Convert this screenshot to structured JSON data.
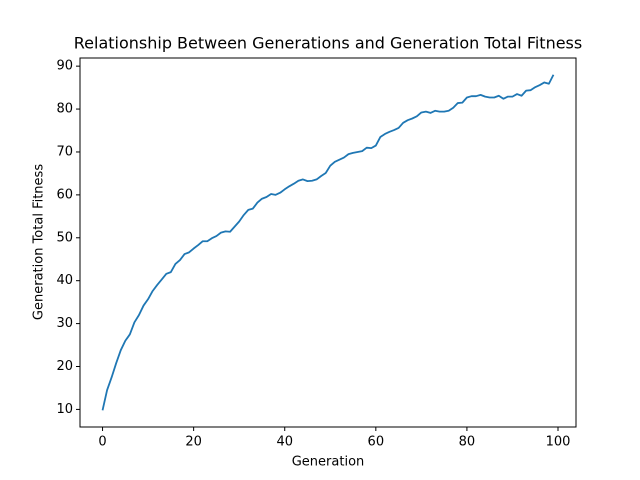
{
  "chart_data": {
    "type": "line",
    "title": "Relationship Between Generations and Generation Total Fitness",
    "xlabel": "Generation",
    "ylabel": "Generation Total Fitness",
    "x": [
      0,
      1,
      2,
      3,
      4,
      5,
      6,
      7,
      8,
      9,
      10,
      11,
      12,
      13,
      14,
      15,
      16,
      17,
      18,
      19,
      20,
      21,
      22,
      23,
      24,
      25,
      26,
      27,
      28,
      29,
      30,
      31,
      32,
      33,
      34,
      35,
      36,
      37,
      38,
      39,
      40,
      41,
      42,
      43,
      44,
      45,
      46,
      47,
      48,
      49,
      50,
      51,
      52,
      53,
      54,
      55,
      56,
      57,
      58,
      59,
      60,
      61,
      62,
      63,
      64,
      65,
      66,
      67,
      68,
      69,
      70,
      71,
      72,
      73,
      74,
      75,
      76,
      77,
      78,
      79,
      80,
      81,
      82,
      83,
      84,
      85,
      86,
      87,
      88,
      89,
      90,
      91,
      92,
      93,
      94,
      95,
      96,
      97,
      98,
      99
    ],
    "series": [
      {
        "name": "Generation Total Fitness",
        "color": "#1f77b4",
        "values": [
          9.8,
          14.5,
          17.5,
          20.8,
          23.8,
          26,
          27.5,
          30.3,
          32,
          34.2,
          35.7,
          37.6,
          39,
          40.3,
          41.6,
          42,
          43.9,
          44.8,
          46.2,
          46.6,
          47.5,
          48.3,
          49.2,
          49.2,
          49.9,
          50.4,
          51.2,
          51.5,
          51.4,
          52.6,
          53.8,
          55.3,
          56.5,
          56.8,
          58.2,
          59.1,
          59.5,
          60.2,
          60,
          60.5,
          61.3,
          62,
          62.6,
          63.3,
          63.6,
          63.2,
          63.3,
          63.6,
          64.4,
          65.1,
          66.8,
          67.7,
          68.2,
          68.7,
          69.5,
          69.8,
          70,
          70.2,
          71,
          70.9,
          71.5,
          73.5,
          74.2,
          74.7,
          75.1,
          75.6,
          76.8,
          77.4,
          77.8,
          78.3,
          79.2,
          79.4,
          79.1,
          79.6,
          79.4,
          79.4,
          79.6,
          80.3,
          81.4,
          81.5,
          82.7,
          83,
          83,
          83.3,
          82.9,
          82.7,
          82.7,
          83.1,
          82.4,
          82.9,
          82.9,
          83.5,
          83.1,
          84.3,
          84.4,
          85.1,
          85.6,
          86.2,
          85.9,
          88
        ]
      }
    ],
    "xlim": [
      -4.95,
      103.95
    ],
    "xticks": [
      0,
      20,
      40,
      60,
      80,
      100
    ],
    "ylim": [
      5.9,
      91.9
    ],
    "yticks": [
      10,
      20,
      30,
      40,
      50,
      60,
      70,
      80,
      90
    ],
    "grid": false
  }
}
